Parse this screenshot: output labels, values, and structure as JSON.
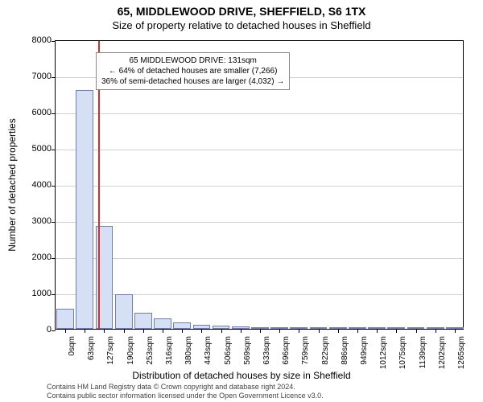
{
  "title_main": "65, MIDDLEWOOD DRIVE, SHEFFIELD, S6 1TX",
  "title_sub": "Size of property relative to detached houses in Sheffield",
  "yaxis_label": "Number of detached properties",
  "xaxis_label": "Distribution of detached houses by size in Sheffield",
  "chart": {
    "type": "histogram",
    "ylim": [
      0,
      8000
    ],
    "ytick_step": 1000,
    "bar_fill": "#d6e0f5",
    "bar_stroke": "#6c7fb8",
    "grid_color": "#d0d0d0",
    "background": "#ffffff",
    "marker_color": "#d03030",
    "marker_x_sqm": 131,
    "x_categories": [
      "0sqm",
      "63sqm",
      "127sqm",
      "190sqm",
      "253sqm",
      "316sqm",
      "380sqm",
      "443sqm",
      "506sqm",
      "569sqm",
      "633sqm",
      "696sqm",
      "759sqm",
      "822sqm",
      "886sqm",
      "949sqm",
      "1012sqm",
      "1075sqm",
      "1139sqm",
      "1202sqm",
      "1265sqm"
    ],
    "x_max_sqm": 1265,
    "values": [
      550,
      6600,
      2850,
      950,
      450,
      280,
      180,
      120,
      80,
      60,
      40,
      35,
      25,
      20,
      20,
      15,
      12,
      10,
      8,
      8,
      6
    ]
  },
  "annotation": {
    "line1": "65 MIDDLEWOOD DRIVE: 131sqm",
    "line2": "← 64% of detached houses are smaller (7,266)",
    "line3": "36% of semi-detached houses are larger (4,032) →"
  },
  "footer": {
    "line1": "Contains HM Land Registry data © Crown copyright and database right 2024.",
    "line2": "Contains public sector information licensed under the Open Government Licence v3.0."
  }
}
